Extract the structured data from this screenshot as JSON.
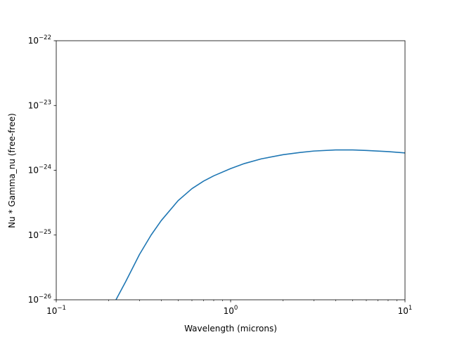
{
  "chart_data": {
    "type": "line",
    "xscale": "log",
    "yscale": "log",
    "xlim": [
      0.1,
      10
    ],
    "ylim": [
      1e-26,
      1e-22
    ],
    "xlabel": "Wavelength (microns)",
    "ylabel": "Nu * Gamma_nu  (free-free)",
    "title": "",
    "grid": false,
    "x_ticks": [
      {
        "value": 0.1,
        "base": "10",
        "exp": "−1"
      },
      {
        "value": 1,
        "base": "10",
        "exp": "0"
      },
      {
        "value": 10,
        "base": "10",
        "exp": "1"
      }
    ],
    "y_ticks": [
      {
        "value": 1e-26,
        "base": "10",
        "exp": "−26"
      },
      {
        "value": 1e-25,
        "base": "10",
        "exp": "−25"
      },
      {
        "value": 1e-24,
        "base": "10",
        "exp": "−24"
      },
      {
        "value": 1e-23,
        "base": "10",
        "exp": "−23"
      },
      {
        "value": 1e-22,
        "base": "10",
        "exp": "−22"
      }
    ],
    "series": [
      {
        "color": "#1f77b4",
        "x": [
          0.22,
          0.25,
          0.3,
          0.35,
          0.4,
          0.5,
          0.6,
          0.7,
          0.8,
          1.0,
          1.2,
          1.5,
          2.0,
          2.5,
          3.0,
          4.0,
          5.0,
          6.0,
          8.0,
          10.0
        ],
        "y": [
          1e-26,
          1.9e-26,
          5e-26,
          1e-25,
          1.67e-25,
          3.4e-25,
          5.2e-25,
          6.8e-25,
          8.2e-25,
          1.06e-24,
          1.27e-24,
          1.5e-24,
          1.74e-24,
          1.88e-24,
          1.98e-24,
          2.06e-24,
          2.06e-24,
          2.02e-24,
          1.94e-24,
          1.85e-24
        ]
      }
    ]
  }
}
